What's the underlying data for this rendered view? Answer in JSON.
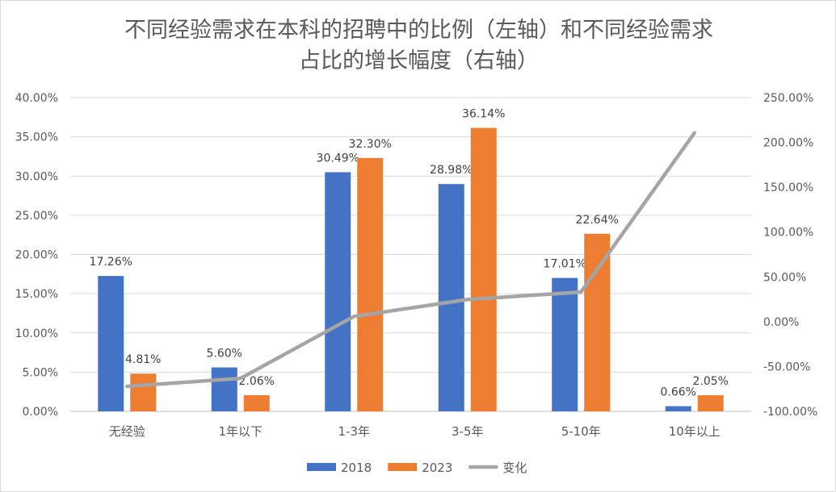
{
  "chart_data": {
    "type": "bar",
    "title_line1": "不同经验需求在本科的招聘中的比例（左轴）和不同经验需求",
    "title_line2": "占比的增长幅度（右轴）",
    "categories": [
      "无经验",
      "1年以下",
      "1-3年",
      "3-5年",
      "5-10年",
      "10年以上"
    ],
    "series": [
      {
        "name": "2018",
        "type": "bar",
        "axis": "left",
        "color": "#4472C4",
        "values": [
          17.26,
          5.6,
          30.49,
          28.98,
          17.01,
          0.66
        ],
        "labels": [
          "17.26%",
          "5.60%",
          "30.49%",
          "28.98%",
          "17.01%",
          "0.66%"
        ]
      },
      {
        "name": "2023",
        "type": "bar",
        "axis": "left",
        "color": "#ED7D31",
        "values": [
          4.81,
          2.06,
          32.3,
          36.14,
          22.64,
          2.05
        ],
        "labels": [
          "4.81%",
          "2.06%",
          "32.30%",
          "36.14%",
          "22.64%",
          "2.05%"
        ]
      },
      {
        "name": "变化",
        "type": "line",
        "axis": "right",
        "color": "#A5A5A5",
        "values": [
          -72.1,
          -63.2,
          5.9,
          24.7,
          33.1,
          210.6
        ]
      }
    ],
    "left_axis": {
      "ylim": [
        0,
        40
      ],
      "ticks": [
        "0.00%",
        "5.00%",
        "10.00%",
        "15.00%",
        "20.00%",
        "25.00%",
        "30.00%",
        "35.00%",
        "40.00%"
      ]
    },
    "right_axis": {
      "ylim": [
        -100,
        250
      ],
      "ticks": [
        "-100.00%",
        "-50.00%",
        "0.00%",
        "50.00%",
        "100.00%",
        "150.00%",
        "200.00%",
        "250.00%"
      ]
    },
    "grid": true,
    "legend_position": "bottom"
  }
}
